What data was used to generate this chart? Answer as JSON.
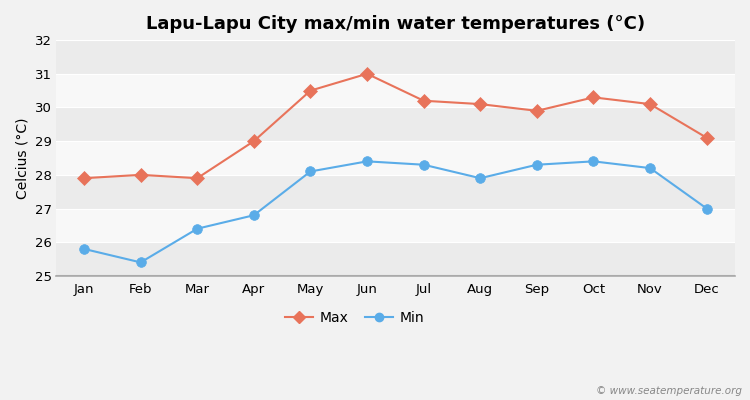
{
  "title": "Lapu-Lapu City max/min water temperatures (°C)",
  "ylabel": "Celcius (°C)",
  "months": [
    "Jan",
    "Feb",
    "Mar",
    "Apr",
    "May",
    "Jun",
    "Jul",
    "Aug",
    "Sep",
    "Oct",
    "Nov",
    "Dec"
  ],
  "max_temps": [
    27.9,
    28.0,
    27.9,
    29.0,
    30.5,
    31.0,
    30.2,
    30.1,
    29.9,
    30.3,
    30.1,
    29.1
  ],
  "min_temps": [
    25.8,
    25.4,
    26.4,
    26.8,
    28.1,
    28.4,
    28.3,
    27.9,
    28.3,
    28.4,
    28.2,
    27.0
  ],
  "max_color": "#e8735a",
  "min_color": "#5aace8",
  "bg_color": "#f2f2f2",
  "band_colors": [
    "#ebebeb",
    "#f8f8f8"
  ],
  "ylim": [
    25,
    32
  ],
  "yticks": [
    25,
    26,
    27,
    28,
    29,
    30,
    31,
    32
  ],
  "legend_labels": [
    "Max",
    "Min"
  ],
  "watermark": "© www.seatemperature.org",
  "title_fontsize": 13,
  "axis_label_fontsize": 10,
  "tick_fontsize": 9.5,
  "legend_fontsize": 10
}
